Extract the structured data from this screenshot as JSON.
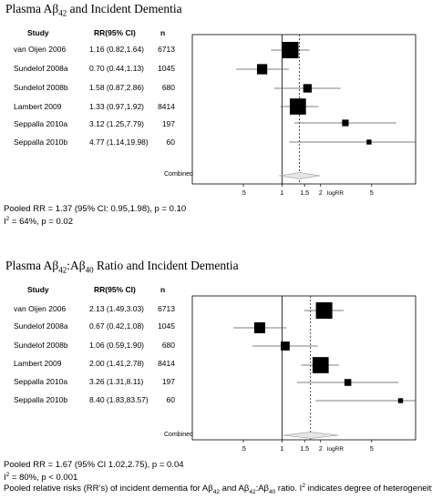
{
  "chart_data": [
    {
      "type": "forest",
      "title": "Plasma Aβ42 and Incident Dementia",
      "title_parts": {
        "pre": "Plasma Aβ",
        "sub1": "42",
        "mid": "",
        "sub2": "",
        "post": " and Incident Dementia"
      },
      "columns": {
        "study": "Study",
        "rr": "RR(95% CI)",
        "n": "n"
      },
      "xlabel": "logRR",
      "x_scale": "log",
      "xlim": [
        0.2,
        11
      ],
      "xticks": [
        ".5",
        "1",
        "1.5",
        "2",
        "5"
      ],
      "xtick_values": [
        0.5,
        1,
        1.5,
        2,
        5
      ],
      "rows": [
        {
          "study": "van Oijen 2006",
          "rr_text": "1.16 (0.82,1.64)",
          "n": "6713",
          "rr": 1.16,
          "lo": 0.82,
          "hi": 1.64,
          "weight": 1.0
        },
        {
          "study": "Sundelof 2008a",
          "rr_text": "0.70 (0.44,1.13)",
          "n": "1045",
          "rr": 0.7,
          "lo": 0.44,
          "hi": 1.13,
          "weight": 0.55
        },
        {
          "study": "Sundelof 2008b",
          "rr_text": "1.58 (0.87,2.86)",
          "n": "680",
          "rr": 1.58,
          "lo": 0.87,
          "hi": 2.86,
          "weight": 0.42
        },
        {
          "study": "Lambert 2009",
          "rr_text": "1.33 (0.97,1.92)",
          "n": "8414",
          "rr": 1.33,
          "lo": 0.97,
          "hi": 1.92,
          "weight": 0.98
        },
        {
          "study": "Seppalla 2010a",
          "rr_text": "3.12 (1.25,7.79)",
          "n": "197",
          "rr": 3.12,
          "lo": 1.25,
          "hi": 7.79,
          "weight": 0.28
        },
        {
          "study": "Seppalla 2010b",
          "rr_text": "4.77 (1.14,19.98)",
          "n": "60",
          "rr": 4.77,
          "lo": 1.14,
          "hi": 19.98,
          "weight": 0.16
        }
      ],
      "combined_label": "Combined",
      "pooled": {
        "rr": 1.37,
        "lo": 0.95,
        "hi": 1.98
      },
      "summary": {
        "line1": "Pooled RR = 1.37 (95% CI: 0.95,1.98), p = 0.10",
        "i2_pre": "I",
        "i2_sup": "2",
        "i2_post": " = 64%, p = 0.02"
      }
    },
    {
      "type": "forest",
      "title": "Plasma Aβ42:Aβ40 Ratio and Incident Dementia",
      "title_parts": {
        "pre": "Plasma Aβ",
        "sub1": "42",
        "mid": ":Aβ",
        "sub2": "40",
        "post": " Ratio and Incident Dementia"
      },
      "columns": {
        "study": "Study",
        "rr": "RR(95% CI)",
        "n": "n"
      },
      "xlabel": "logRR",
      "x_scale": "log",
      "xlim": [
        0.2,
        11
      ],
      "xticks": [
        ".5",
        "1",
        "1.5",
        "2",
        "5"
      ],
      "xtick_values": [
        0.5,
        1,
        1.5,
        2,
        5
      ],
      "rows": [
        {
          "study": "van Oijen 2006",
          "rr_text": "2.13 (1.49,3.03)",
          "n": "6713",
          "rr": 2.13,
          "lo": 1.49,
          "hi": 3.03,
          "weight": 1.0
        },
        {
          "study": "Sundelof 2008a",
          "rr_text": "0.67 (0.42,1.08)",
          "n": "1045",
          "rr": 0.67,
          "lo": 0.42,
          "hi": 1.08,
          "weight": 0.6
        },
        {
          "study": "Sundelof 2008b",
          "rr_text": "1.06 (0.59,1.90)",
          "n": "680",
          "rr": 1.06,
          "lo": 0.59,
          "hi": 1.9,
          "weight": 0.45
        },
        {
          "study": "Lambert 2009",
          "rr_text": "2.00 (1.41,2.78)",
          "n": "8414",
          "rr": 2.0,
          "lo": 1.41,
          "hi": 2.78,
          "weight": 0.98
        },
        {
          "study": "Seppalla 2010a",
          "rr_text": "3.26 (1.31,8.11)",
          "n": "197",
          "rr": 3.26,
          "lo": 1.31,
          "hi": 8.11,
          "weight": 0.3
        },
        {
          "study": "Seppalla 2010b",
          "rr_text": "8.40 (1.83,83.57)",
          "n": "60",
          "rr": 8.4,
          "lo": 1.83,
          "hi": 83.57,
          "weight": 0.16
        }
      ],
      "combined_label": "Combined",
      "pooled": {
        "rr": 1.67,
        "lo": 1.02,
        "hi": 2.75
      },
      "summary": {
        "line1": "Pooled RR = 1.67 (95% CI 1.02,2.75), p = 0.04",
        "i2_pre": "I",
        "i2_sup": "2",
        "i2_post": " = 80%, p < 0.001"
      }
    }
  ],
  "caption": {
    "p1": "Pooled relative risks (RR’s) of incident dementia for Aβ",
    "s1": "42",
    "p2": " and Aβ",
    "s2": "42",
    "p3": ":Aβ",
    "s3": "40",
    "p4": " ratio. I",
    "s4": "2",
    "p5": " indicates degree of heterogeneity."
  }
}
